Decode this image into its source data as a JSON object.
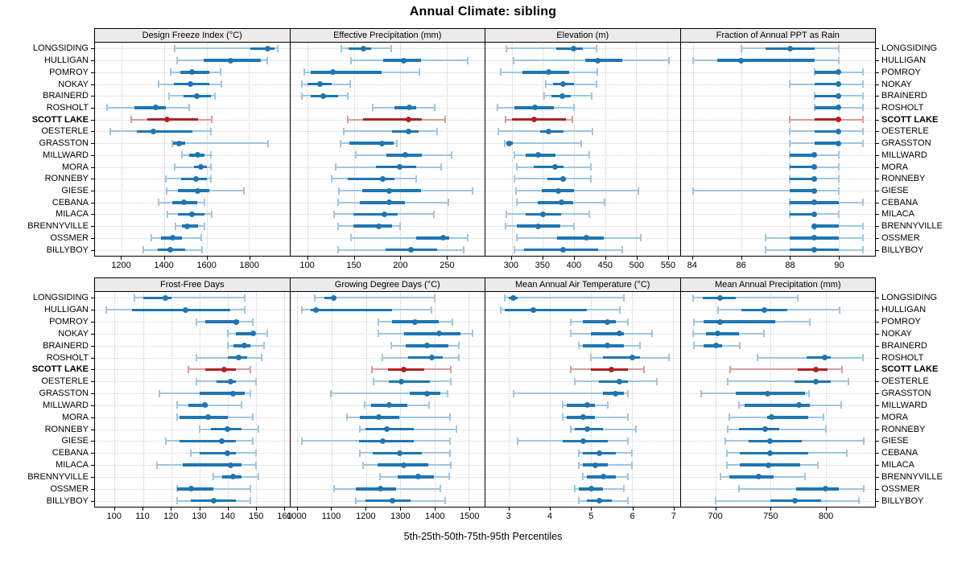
{
  "title": "Annual Climate: sibling",
  "footer": "5th-25th-50th-75th-95th Percentiles",
  "colors": {
    "series_main": "#1d76b4",
    "series_light": "#9fc6e0",
    "highlight_main": "#b22222",
    "highlight_light": "#d89c9c",
    "strip_bg": "#ebebeb",
    "grid": "#c9c9c9"
  },
  "chart_data": {
    "type": "percentile-dot",
    "title": "Annual Climate: sibling",
    "xlabel": "5th-25th-50th-75th-95th Percentiles",
    "percentile_order": [
      "p5",
      "p25",
      "p50",
      "p75",
      "p95"
    ],
    "legend_position": "none",
    "grid": "dotted",
    "highlight_site": "SCOTT LAKE",
    "sites": [
      "LONGSIDING",
      "HULLIGAN",
      "POMROY",
      "NOKAY",
      "BRAINERD",
      "ROSHOLT",
      "SCOTT LAKE",
      "OESTERLE",
      "GRASSTON",
      "MILLWARD",
      "MORA",
      "RONNEBY",
      "GIESE",
      "CEBANA",
      "MILACA",
      "BRENNYVILLE",
      "OSSMER",
      "BILLYBOY"
    ],
    "panels": [
      {
        "title": "Design Freeze Index (°C)",
        "row": 0,
        "xlim": [
          1074,
          1991
        ],
        "ticks": [
          1200,
          1400,
          1600,
          1800
        ],
        "values": [
          [
            1450,
            1805,
            1890,
            1920,
            1935
          ],
          [
            1460,
            1585,
            1715,
            1855,
            1885
          ],
          [
            1430,
            1475,
            1530,
            1615,
            1665
          ],
          [
            1375,
            1445,
            1525,
            1615,
            1670
          ],
          [
            1425,
            1490,
            1555,
            1620,
            1640
          ],
          [
            1130,
            1260,
            1360,
            1410,
            1520
          ],
          [
            1245,
            1320,
            1415,
            1560,
            1625
          ],
          [
            1145,
            1270,
            1350,
            1535,
            1620
          ],
          [
            1440,
            1442,
            1470,
            1498,
            1890
          ],
          [
            1485,
            1520,
            1560,
            1590,
            1620
          ],
          [
            1450,
            1540,
            1575,
            1600,
            1620
          ],
          [
            1410,
            1480,
            1550,
            1600,
            1620
          ],
          [
            1412,
            1465,
            1558,
            1615,
            1775
          ],
          [
            1375,
            1440,
            1495,
            1555,
            1590
          ],
          [
            1415,
            1465,
            1530,
            1590,
            1625
          ],
          [
            1455,
            1485,
            1510,
            1560,
            1590
          ],
          [
            1340,
            1385,
            1440,
            1485,
            1575
          ],
          [
            1300,
            1370,
            1430,
            1500,
            1580
          ]
        ]
      },
      {
        "title": "Effective Precipitation (mm)",
        "row": 0,
        "xlim": [
          81,
          291
        ],
        "ticks": [
          100,
          150,
          200,
          250
        ],
        "values": [
          [
            136,
            144,
            160,
            168,
            190
          ],
          [
            147,
            181,
            204,
            222,
            273
          ],
          [
            96,
            103,
            127,
            180,
            221
          ],
          [
            94,
            100,
            113,
            126,
            146
          ],
          [
            94,
            103,
            117,
            133,
            143
          ],
          [
            170,
            194,
            210,
            217,
            237
          ],
          [
            143,
            160,
            209,
            223,
            248
          ],
          [
            139,
            191,
            209,
            220,
            240
          ],
          [
            135,
            145,
            180,
            193,
            196
          ],
          [
            152,
            185,
            205,
            223,
            255
          ],
          [
            130,
            174,
            199,
            217,
            244
          ],
          [
            126,
            143,
            181,
            194,
            217
          ],
          [
            134,
            159,
            188,
            222,
            278
          ],
          [
            133,
            156,
            188,
            205,
            252
          ],
          [
            128,
            149,
            183,
            197,
            236
          ],
          [
            133,
            149,
            177,
            191,
            200
          ],
          [
            147,
            217,
            246,
            253,
            273
          ],
          [
            133,
            184,
            211,
            240,
            268
          ]
        ]
      },
      {
        "title": "Elevation (m)",
        "row": 0,
        "xlim": [
          258,
          570
        ],
        "ticks": [
          300,
          350,
          400,
          450,
          500,
          550
        ],
        "values": [
          [
            292,
            372,
            399,
            414,
            436
          ],
          [
            303,
            418,
            438,
            477,
            552
          ],
          [
            282,
            318,
            359,
            392,
            438
          ],
          [
            355,
            366,
            383,
            400,
            436
          ],
          [
            352,
            364,
            381,
            395,
            428
          ],
          [
            277,
            304,
            338,
            368,
            400
          ],
          [
            290,
            301,
            336,
            387,
            398
          ],
          [
            279,
            346,
            360,
            383,
            430
          ],
          [
            289,
            291,
            296,
            302,
            412
          ],
          [
            304,
            322,
            343,
            371,
            425
          ],
          [
            308,
            335,
            370,
            383,
            427
          ],
          [
            305,
            357,
            383,
            387,
            427
          ],
          [
            307,
            349,
            375,
            400,
            503
          ],
          [
            309,
            342,
            380,
            399,
            449
          ],
          [
            292,
            322,
            350,
            380,
            425
          ],
          [
            290,
            309,
            343,
            378,
            400
          ],
          [
            309,
            373,
            420,
            448,
            507
          ],
          [
            305,
            320,
            383,
            439,
            478
          ]
        ]
      },
      {
        "title": "Fraction of Annual PPT as Rain",
        "row": 0,
        "xlim": [
          83.5,
          91.5
        ],
        "ticks": [
          84,
          86,
          88,
          90
        ],
        "values": [
          [
            86,
            87,
            88,
            89,
            90
          ],
          [
            84,
            85,
            86,
            89,
            90
          ],
          [
            89,
            89,
            90,
            90,
            91
          ],
          [
            88,
            89,
            90,
            90,
            91
          ],
          [
            89,
            89,
            90,
            90,
            91
          ],
          [
            89,
            89,
            90,
            90,
            91
          ],
          [
            88,
            89,
            90,
            90,
            91
          ],
          [
            88,
            89,
            90,
            90,
            91
          ],
          [
            88,
            89,
            90,
            90,
            91
          ],
          [
            88,
            88,
            89,
            89,
            90
          ],
          [
            88,
            88,
            89,
            89,
            90
          ],
          [
            88,
            88,
            89,
            89,
            90
          ],
          [
            84,
            88,
            89,
            89,
            90
          ],
          [
            88,
            88,
            89,
            90,
            91
          ],
          [
            88,
            88,
            89,
            89,
            90
          ],
          [
            89,
            89,
            89,
            90,
            91
          ],
          [
            87,
            88,
            89,
            90,
            91
          ],
          [
            87,
            88,
            89,
            90,
            91
          ]
        ]
      },
      {
        "title": "Frost-Free Days",
        "row": 1,
        "xlim": [
          93,
          162
        ],
        "ticks": [
          100,
          110,
          120,
          130,
          140,
          150,
          160
        ],
        "values": [
          [
            107,
            110,
            118,
            120,
            146
          ],
          [
            97,
            106,
            125,
            141,
            146
          ],
          [
            129,
            132,
            143,
            144,
            149
          ],
          [
            140,
            143,
            149,
            150,
            154
          ],
          [
            140,
            142,
            146,
            148,
            153
          ],
          [
            129,
            140,
            144,
            147,
            152
          ],
          [
            126,
            132,
            139,
            143,
            148
          ],
          [
            129,
            136,
            141,
            143,
            150
          ],
          [
            116,
            130,
            142,
            146,
            148
          ],
          [
            122,
            126,
            132,
            133,
            145
          ],
          [
            122,
            123,
            133,
            140,
            149
          ],
          [
            130,
            134,
            140,
            145,
            151
          ],
          [
            118,
            123,
            138,
            143,
            149
          ],
          [
            127,
            130,
            140,
            143,
            150
          ],
          [
            115,
            124,
            141,
            145,
            150
          ],
          [
            135,
            138,
            142,
            145,
            151
          ],
          [
            122,
            122,
            127,
            135,
            148
          ],
          [
            122,
            127,
            135,
            143,
            148
          ]
        ]
      },
      {
        "title": "Growing Degree Days (°C)",
        "row": 1,
        "xlim": [
          979,
          1546
        ],
        "ticks": [
          1000,
          1100,
          1200,
          1300,
          1400,
          1500
        ],
        "values": [
          [
            1050,
            1078,
            1105,
            1115,
            1400
          ],
          [
            1013,
            1038,
            1055,
            1277,
            1390
          ],
          [
            1235,
            1277,
            1343,
            1413,
            1452
          ],
          [
            1236,
            1312,
            1413,
            1476,
            1511
          ],
          [
            1273,
            1316,
            1378,
            1441,
            1472
          ],
          [
            1247,
            1323,
            1392,
            1425,
            1472
          ],
          [
            1218,
            1265,
            1309,
            1370,
            1448
          ],
          [
            1223,
            1267,
            1304,
            1386,
            1448
          ],
          [
            1097,
            1327,
            1377,
            1417,
            1437
          ],
          [
            1195,
            1214,
            1267,
            1320,
            1384
          ],
          [
            1145,
            1181,
            1238,
            1296,
            1445
          ],
          [
            1181,
            1198,
            1261,
            1339,
            1464
          ],
          [
            1013,
            1179,
            1249,
            1339,
            1445
          ],
          [
            1183,
            1220,
            1298,
            1363,
            1445
          ],
          [
            1192,
            1234,
            1309,
            1382,
            1448
          ],
          [
            1241,
            1292,
            1353,
            1398,
            1442
          ],
          [
            1106,
            1171,
            1241,
            1288,
            1417
          ],
          [
            1171,
            1198,
            1277,
            1331,
            1430
          ]
        ]
      },
      {
        "title": "Mean Annual Air Temperature (°C)",
        "row": 1,
        "xlim": [
          2.42,
          7.17
        ],
        "ticks": [
          3,
          4,
          5,
          6,
          7
        ],
        "values": [
          [
            2.9,
            3.0,
            3.1,
            3.2,
            5.8
          ],
          [
            2.8,
            2.9,
            3.6,
            4.9,
            5.7
          ],
          [
            4.5,
            4.8,
            5.4,
            5.6,
            5.9
          ],
          [
            4.5,
            5.0,
            5.7,
            5.8,
            6.5
          ],
          [
            4.7,
            4.8,
            5.4,
            5.8,
            6.2
          ],
          [
            5.0,
            5.3,
            6.0,
            6.2,
            6.9
          ],
          [
            4.5,
            5.0,
            5.5,
            5.9,
            6.3
          ],
          [
            4.6,
            5.2,
            5.7,
            5.9,
            6.6
          ],
          [
            3.1,
            5.3,
            5.6,
            5.8,
            5.9
          ],
          [
            4.3,
            4.4,
            4.9,
            5.1,
            5.4
          ],
          [
            4.3,
            4.4,
            4.8,
            5.1,
            5.9
          ],
          [
            4.5,
            4.6,
            4.9,
            5.3,
            6.1
          ],
          [
            3.2,
            4.3,
            4.8,
            5.4,
            5.9
          ],
          [
            4.7,
            4.8,
            5.2,
            5.6,
            6.0
          ],
          [
            4.7,
            4.8,
            5.1,
            5.4,
            6.0
          ],
          [
            4.8,
            4.9,
            5.3,
            5.6,
            5.9
          ],
          [
            4.6,
            4.7,
            5.0,
            5.3,
            5.8
          ],
          [
            4.7,
            4.9,
            5.2,
            5.5,
            5.9
          ]
        ]
      },
      {
        "title": "Mean Annual Precipitation (mm)",
        "row": 1,
        "xlim": [
          668,
          845
        ],
        "ticks": [
          700,
          750,
          800
        ],
        "values": [
          [
            679,
            688,
            704,
            718,
            775
          ],
          [
            702,
            723,
            744,
            765,
            813
          ],
          [
            680,
            689,
            704,
            754,
            786
          ],
          [
            679,
            691,
            702,
            721,
            744
          ],
          [
            680,
            689,
            700,
            706,
            722
          ],
          [
            738,
            783,
            799,
            805,
            834
          ],
          [
            713,
            775,
            791,
            802,
            815
          ],
          [
            711,
            772,
            791,
            805,
            821
          ],
          [
            687,
            718,
            747,
            781,
            785
          ],
          [
            721,
            726,
            776,
            786,
            814
          ],
          [
            712,
            747,
            751,
            784,
            798
          ],
          [
            711,
            721,
            745,
            758,
            800
          ],
          [
            709,
            730,
            749,
            778,
            835
          ],
          [
            710,
            722,
            749,
            784,
            819
          ],
          [
            710,
            722,
            748,
            777,
            793
          ],
          [
            704,
            712,
            739,
            753,
            781
          ],
          [
            721,
            773,
            800,
            812,
            835
          ],
          [
            700,
            750,
            772,
            796,
            830
          ]
        ]
      }
    ]
  }
}
